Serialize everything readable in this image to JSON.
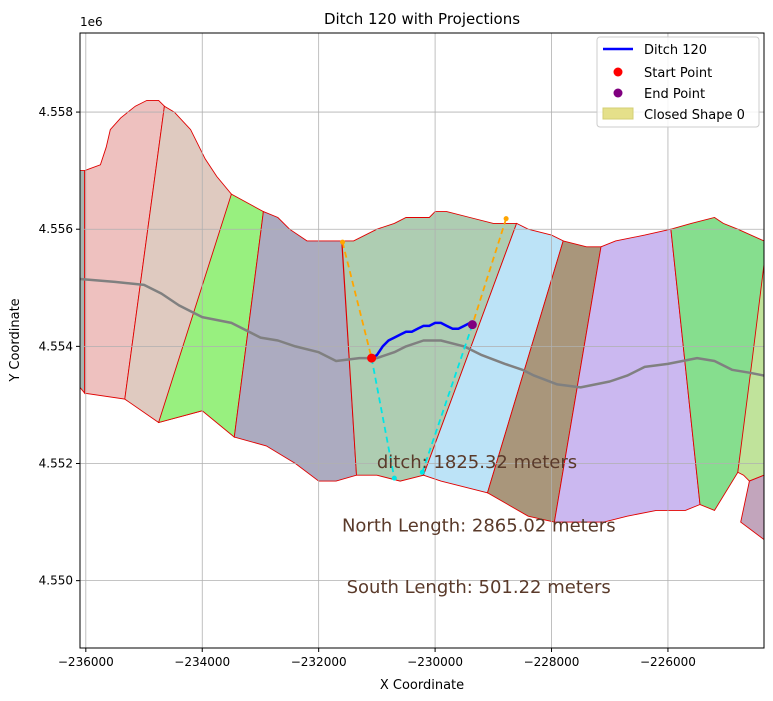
{
  "chart_data": {
    "type": "line",
    "title": "Ditch 120 with Projections",
    "xlabel": "X Coordinate",
    "ylabel": "Y Coordinate",
    "offset_label": "1e6",
    "xlim": [
      -236100,
      -224350
    ],
    "ylim": [
      4.54885,
      4.55935
    ],
    "xticks": [
      -236000,
      -234000,
      -232000,
      -230000,
      -228000,
      -226000
    ],
    "xtick_labels": [
      "−236000",
      "−234000",
      "−232000",
      "−230000",
      "−228000",
      "−226000"
    ],
    "yticks": [
      4.55,
      4.552,
      4.554,
      4.556,
      4.558
    ],
    "ytick_labels": [
      "4.550",
      "4.552",
      "4.554",
      "4.556",
      "4.558"
    ],
    "grid": true,
    "legend_position": "top-right",
    "legend": [
      {
        "label": "Ditch 120",
        "kind": "line",
        "color": "#0000ff"
      },
      {
        "label": "Start Point",
        "kind": "dot",
        "color": "#ff0000"
      },
      {
        "label": "End Point",
        "kind": "dot",
        "color": "#800080"
      },
      {
        "label": "Closed Shape 0",
        "kind": "patch",
        "color": "#e5e08a"
      }
    ],
    "annotations": [
      {
        "text": "ditch: 1825.32 meters",
        "x": -231000,
        "y": 4.55192
      },
      {
        "text": "North Length: 2865.02 meters",
        "x": -231600,
        "y": 4.55084
      },
      {
        "text": "South Length: 501.22 meters",
        "x": -231520,
        "y": 4.54979
      }
    ],
    "annotation_color": "#5a3a2a",
    "shapes": [
      {
        "fill": "#a6b5b0",
        "points": [
          [
            -236100,
            4.557
          ],
          [
            -236020,
            4.557
          ],
          [
            -236020,
            4.5532
          ],
          [
            -236100,
            4.5533
          ]
        ]
      },
      {
        "fill": "#eec1bf",
        "points": [
          [
            -236020,
            4.557
          ],
          [
            -235750,
            4.5571
          ],
          [
            -235650,
            4.5574
          ],
          [
            -235580,
            4.5577
          ],
          [
            -235400,
            4.5579
          ],
          [
            -235150,
            4.5581
          ],
          [
            -234950,
            4.5582
          ],
          [
            -234750,
            4.5582
          ],
          [
            -234650,
            4.5581
          ],
          [
            -235330,
            4.5531
          ],
          [
            -236020,
            4.5532
          ]
        ]
      },
      {
        "fill": "#dfcac0",
        "points": [
          [
            -234650,
            4.5581
          ],
          [
            -234480,
            4.558
          ],
          [
            -234200,
            4.5577
          ],
          [
            -233950,
            4.5572
          ],
          [
            -233750,
            4.5569
          ],
          [
            -233500,
            4.5566
          ],
          [
            -234000,
            4.5529
          ],
          [
            -234750,
            4.5527
          ],
          [
            -235330,
            4.5531
          ]
        ]
      },
      {
        "fill": "#98f07f",
        "points": [
          [
            -233500,
            4.5566
          ],
          [
            -232950,
            4.5563
          ],
          [
            -233450,
            4.55245
          ],
          [
            -234000,
            4.5529
          ],
          [
            -234750,
            4.5527
          ]
        ]
      },
      {
        "fill": "#acabc0",
        "points": [
          [
            -232950,
            4.5563
          ],
          [
            -232700,
            4.5562
          ],
          [
            -232500,
            4.556
          ],
          [
            -232200,
            4.5558
          ],
          [
            -231750,
            4.5558
          ],
          [
            -231600,
            4.5558
          ],
          [
            -231600,
            4.5557
          ],
          [
            -231350,
            4.5518
          ],
          [
            -231700,
            4.5517
          ],
          [
            -232000,
            4.5517
          ],
          [
            -232400,
            4.552
          ],
          [
            -232900,
            4.5523
          ],
          [
            -233450,
            4.55245
          ]
        ]
      },
      {
        "fill": "#aecdb2",
        "points": [
          [
            -231600,
            4.5558
          ],
          [
            -231400,
            4.5558
          ],
          [
            -231000,
            4.556
          ],
          [
            -230700,
            4.5561
          ],
          [
            -230500,
            4.5562
          ],
          [
            -230300,
            4.5562
          ],
          [
            -230100,
            4.5562
          ],
          [
            -230000,
            4.5563
          ],
          [
            -229800,
            4.5563
          ],
          [
            -229400,
            4.5562
          ],
          [
            -229000,
            4.5561
          ],
          [
            -228600,
            4.5561
          ],
          [
            -230200,
            4.5518
          ],
          [
            -230600,
            4.5517
          ],
          [
            -231000,
            4.5518
          ],
          [
            -231350,
            4.5518
          ]
        ]
      },
      {
        "fill": "#bce3f7",
        "points": [
          [
            -228600,
            4.5561
          ],
          [
            -228400,
            4.556
          ],
          [
            -228000,
            4.5559
          ],
          [
            -227800,
            4.5558
          ],
          [
            -229100,
            4.5515
          ],
          [
            -229500,
            4.5516
          ],
          [
            -229900,
            4.5517
          ],
          [
            -230200,
            4.5518
          ]
        ]
      },
      {
        "fill": "#a9967b",
        "points": [
          [
            -227800,
            4.5558
          ],
          [
            -227400,
            4.5557
          ],
          [
            -227150,
            4.5557
          ],
          [
            -227950,
            4.551
          ],
          [
            -228400,
            4.5511
          ],
          [
            -229100,
            4.5515
          ]
        ]
      },
      {
        "fill": "#cbb8f0",
        "points": [
          [
            -227150,
            4.5557
          ],
          [
            -226900,
            4.5558
          ],
          [
            -226400,
            4.5559
          ],
          [
            -225950,
            4.556
          ],
          [
            -225450,
            4.5513
          ],
          [
            -225700,
            4.5512
          ],
          [
            -226200,
            4.5512
          ],
          [
            -226700,
            4.5511
          ],
          [
            -227100,
            4.551
          ],
          [
            -227500,
            4.551
          ],
          [
            -227950,
            4.551
          ]
        ]
      },
      {
        "fill": "#86de8e",
        "points": [
          [
            -225950,
            4.556
          ],
          [
            -225600,
            4.5561
          ],
          [
            -225200,
            4.5562
          ],
          [
            -225050,
            4.5561
          ],
          [
            -224800,
            4.556
          ],
          [
            -224350,
            4.5558
          ],
          [
            -224350,
            4.555
          ],
          [
            -224800,
            4.55185
          ],
          [
            -225200,
            4.5512
          ],
          [
            -225450,
            4.5513
          ]
        ]
      },
      {
        "fill": "#c0e39b",
        "points": [
          [
            -224350,
            4.5558
          ],
          [
            -224350,
            4.5554
          ],
          [
            -224550,
            4.5538
          ],
          [
            -224800,
            4.55185
          ],
          [
            -224700,
            4.5518
          ],
          [
            -224600,
            4.5517
          ],
          [
            -224350,
            4.5518
          ]
        ]
      },
      {
        "fill": "#c2a5bc",
        "points": [
          [
            -224600,
            4.5517
          ],
          [
            -224350,
            4.5518
          ],
          [
            -224350,
            4.5507
          ],
          [
            -224750,
            4.551
          ]
        ]
      }
    ],
    "gray_path": [
      [
        -236100,
        4.55515
      ],
      [
        -235500,
        4.5551
      ],
      [
        -235000,
        4.55505
      ],
      [
        -234700,
        4.5549
      ],
      [
        -234400,
        4.5547
      ],
      [
        -234000,
        4.5545
      ],
      [
        -233500,
        4.5544
      ],
      [
        -233000,
        4.55415
      ],
      [
        -232700,
        4.5541
      ],
      [
        -232400,
        4.554
      ],
      [
        -232000,
        4.5539
      ],
      [
        -231700,
        4.55375
      ],
      [
        -231300,
        4.5538
      ],
      [
        -231000,
        4.5538
      ],
      [
        -230700,
        4.5539
      ],
      [
        -230500,
        4.554
      ],
      [
        -230200,
        4.5541
      ],
      [
        -229900,
        4.5541
      ],
      [
        -229500,
        4.554
      ],
      [
        -229200,
        4.55385
      ],
      [
        -228800,
        4.5537
      ],
      [
        -228500,
        4.5536
      ],
      [
        -228300,
        4.5535
      ],
      [
        -227900,
        4.55335
      ],
      [
        -227500,
        4.5533
      ],
      [
        -227000,
        4.5534
      ],
      [
        -226700,
        4.5535
      ],
      [
        -226400,
        4.55365
      ],
      [
        -226000,
        4.5537
      ],
      [
        -225500,
        4.5538
      ],
      [
        -225200,
        4.55375
      ],
      [
        -224900,
        4.5536
      ],
      [
        -224600,
        4.55355
      ],
      [
        -224350,
        4.5535
      ]
    ],
    "ditch": [
      [
        -231100,
        4.5538
      ],
      [
        -231000,
        4.55385
      ],
      [
        -230900,
        4.554
      ],
      [
        -230800,
        4.5541
      ],
      [
        -230700,
        4.55415
      ],
      [
        -230600,
        4.5542
      ],
      [
        -230500,
        4.55425
      ],
      [
        -230400,
        4.55425
      ],
      [
        -230300,
        4.5543
      ],
      [
        -230200,
        4.55435
      ],
      [
        -230100,
        4.55435
      ],
      [
        -230000,
        4.5544
      ],
      [
        -229900,
        4.5544
      ],
      [
        -229800,
        4.55435
      ],
      [
        -229700,
        4.5543
      ],
      [
        -229600,
        4.5543
      ],
      [
        -229500,
        4.55435
      ],
      [
        -229400,
        4.5544
      ],
      [
        -229350,
        4.5544
      ]
    ],
    "ditch_color": "#0000ff",
    "start_point": [
      -231090,
      4.5538
    ],
    "end_point": [
      -229360,
      4.55437
    ],
    "projections": [
      {
        "color": "#ffa500",
        "points": [
          [
            -231590,
            4.55578
          ],
          [
            -231090,
            4.5538
          ]
        ]
      },
      {
        "color": "#ffa500",
        "points": [
          [
            -228780,
            4.55618
          ],
          [
            -229360,
            4.55437
          ]
        ]
      },
      {
        "color": "#00e5e5",
        "points": [
          [
            -231090,
            4.5538
          ],
          [
            -230700,
            4.55175
          ]
        ]
      },
      {
        "color": "#00e5e5",
        "points": [
          [
            -229360,
            4.55437
          ],
          [
            -230220,
            4.55185
          ]
        ]
      }
    ]
  }
}
